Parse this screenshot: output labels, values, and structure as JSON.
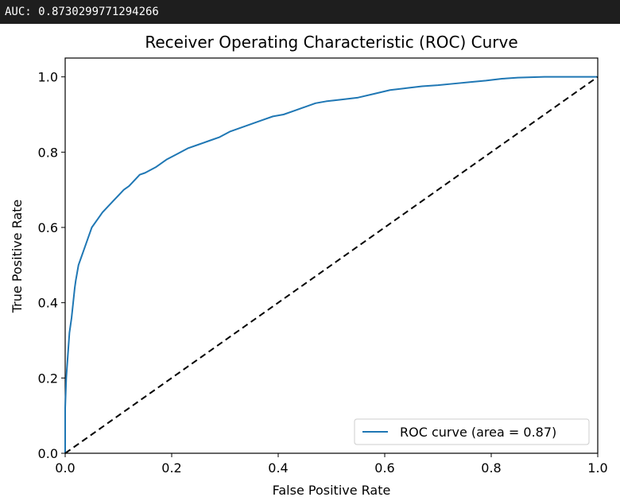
{
  "output": {
    "auc_text": "AUC: 0.8730299771294266"
  },
  "chart_data": {
    "type": "line",
    "title": "Receiver Operating Characteristic (ROC) Curve",
    "xlabel": "False Positive Rate",
    "ylabel": "True Positive Rate",
    "xlim": [
      0.0,
      1.0
    ],
    "ylim": [
      0.0,
      1.05
    ],
    "xticks": [
      0.0,
      0.2,
      0.4,
      0.6,
      0.8,
      1.0
    ],
    "xtick_labels": [
      "0.0",
      "0.2",
      "0.4",
      "0.6",
      "0.8",
      "1.0"
    ],
    "yticks": [
      0.0,
      0.2,
      0.4,
      0.6,
      0.8,
      1.0
    ],
    "ytick_labels": [
      "0.0",
      "0.2",
      "0.4",
      "0.6",
      "0.8",
      "1.0"
    ],
    "grid": false,
    "legend_position": "lower-right",
    "series": [
      {
        "name": "ROC curve (area = 0.87)",
        "color": "#1f77b4",
        "style": "solid",
        "x": [
          0.0,
          0.0,
          0.002,
          0.004,
          0.006,
          0.008,
          0.01,
          0.012,
          0.015,
          0.018,
          0.02,
          0.025,
          0.03,
          0.035,
          0.04,
          0.045,
          0.05,
          0.06,
          0.07,
          0.08,
          0.09,
          0.1,
          0.11,
          0.12,
          0.13,
          0.14,
          0.15,
          0.17,
          0.19,
          0.21,
          0.23,
          0.25,
          0.27,
          0.29,
          0.31,
          0.33,
          0.35,
          0.37,
          0.39,
          0.41,
          0.43,
          0.45,
          0.47,
          0.49,
          0.52,
          0.55,
          0.58,
          0.61,
          0.64,
          0.67,
          0.7,
          0.73,
          0.76,
          0.79,
          0.82,
          0.85,
          0.9,
          1.0
        ],
        "y": [
          0.0,
          0.12,
          0.2,
          0.24,
          0.28,
          0.32,
          0.34,
          0.36,
          0.4,
          0.44,
          0.46,
          0.5,
          0.52,
          0.54,
          0.56,
          0.58,
          0.6,
          0.62,
          0.64,
          0.655,
          0.67,
          0.685,
          0.7,
          0.71,
          0.725,
          0.74,
          0.745,
          0.76,
          0.78,
          0.795,
          0.81,
          0.82,
          0.83,
          0.84,
          0.855,
          0.865,
          0.875,
          0.885,
          0.895,
          0.9,
          0.91,
          0.92,
          0.93,
          0.935,
          0.94,
          0.945,
          0.955,
          0.965,
          0.97,
          0.975,
          0.978,
          0.982,
          0.986,
          0.99,
          0.995,
          0.998,
          1.0,
          1.0
        ]
      },
      {
        "name": "",
        "color": "#000000",
        "style": "dashed",
        "x": [
          0.0,
          1.0
        ],
        "y": [
          0.0,
          1.0
        ]
      }
    ]
  }
}
